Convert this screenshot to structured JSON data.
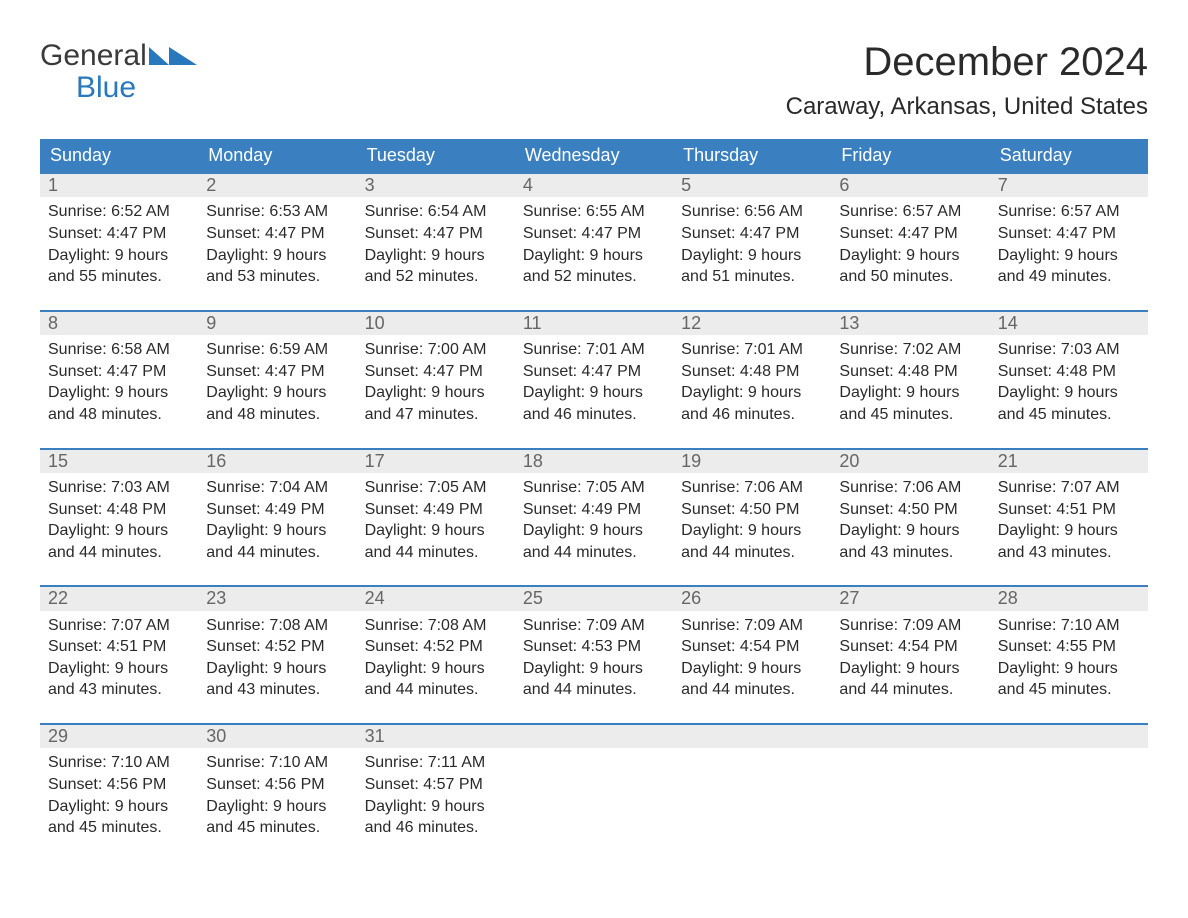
{
  "logo": {
    "line1": "General",
    "line2": "Blue"
  },
  "title": "December 2024",
  "location": "Caraway, Arkansas, United States",
  "colors": {
    "header_bg": "#3a80c0",
    "header_text": "#ffffff",
    "daynum_bg": "#ececec",
    "daynum_text": "#666666",
    "body_text": "#2a2a2a",
    "rule": "#3a80c0",
    "logo_blue": "#2778bd",
    "logo_gray": "#3a3a3a"
  },
  "layout": {
    "type": "calendar-table",
    "columns": 7,
    "rows": 5,
    "cell_font_size": 16,
    "header_font_size": 18,
    "title_font_size": 40,
    "location_font_size": 24
  },
  "day_headers": [
    "Sunday",
    "Monday",
    "Tuesday",
    "Wednesday",
    "Thursday",
    "Friday",
    "Saturday"
  ],
  "weeks": [
    [
      {
        "n": "1",
        "sr": "Sunrise: 6:52 AM",
        "ss": "Sunset: 4:47 PM",
        "d1": "Daylight: 9 hours",
        "d2": "and 55 minutes."
      },
      {
        "n": "2",
        "sr": "Sunrise: 6:53 AM",
        "ss": "Sunset: 4:47 PM",
        "d1": "Daylight: 9 hours",
        "d2": "and 53 minutes."
      },
      {
        "n": "3",
        "sr": "Sunrise: 6:54 AM",
        "ss": "Sunset: 4:47 PM",
        "d1": "Daylight: 9 hours",
        "d2": "and 52 minutes."
      },
      {
        "n": "4",
        "sr": "Sunrise: 6:55 AM",
        "ss": "Sunset: 4:47 PM",
        "d1": "Daylight: 9 hours",
        "d2": "and 52 minutes."
      },
      {
        "n": "5",
        "sr": "Sunrise: 6:56 AM",
        "ss": "Sunset: 4:47 PM",
        "d1": "Daylight: 9 hours",
        "d2": "and 51 minutes."
      },
      {
        "n": "6",
        "sr": "Sunrise: 6:57 AM",
        "ss": "Sunset: 4:47 PM",
        "d1": "Daylight: 9 hours",
        "d2": "and 50 minutes."
      },
      {
        "n": "7",
        "sr": "Sunrise: 6:57 AM",
        "ss": "Sunset: 4:47 PM",
        "d1": "Daylight: 9 hours",
        "d2": "and 49 minutes."
      }
    ],
    [
      {
        "n": "8",
        "sr": "Sunrise: 6:58 AM",
        "ss": "Sunset: 4:47 PM",
        "d1": "Daylight: 9 hours",
        "d2": "and 48 minutes."
      },
      {
        "n": "9",
        "sr": "Sunrise: 6:59 AM",
        "ss": "Sunset: 4:47 PM",
        "d1": "Daylight: 9 hours",
        "d2": "and 48 minutes."
      },
      {
        "n": "10",
        "sr": "Sunrise: 7:00 AM",
        "ss": "Sunset: 4:47 PM",
        "d1": "Daylight: 9 hours",
        "d2": "and 47 minutes."
      },
      {
        "n": "11",
        "sr": "Sunrise: 7:01 AM",
        "ss": "Sunset: 4:47 PM",
        "d1": "Daylight: 9 hours",
        "d2": "and 46 minutes."
      },
      {
        "n": "12",
        "sr": "Sunrise: 7:01 AM",
        "ss": "Sunset: 4:48 PM",
        "d1": "Daylight: 9 hours",
        "d2": "and 46 minutes."
      },
      {
        "n": "13",
        "sr": "Sunrise: 7:02 AM",
        "ss": "Sunset: 4:48 PM",
        "d1": "Daylight: 9 hours",
        "d2": "and 45 minutes."
      },
      {
        "n": "14",
        "sr": "Sunrise: 7:03 AM",
        "ss": "Sunset: 4:48 PM",
        "d1": "Daylight: 9 hours",
        "d2": "and 45 minutes."
      }
    ],
    [
      {
        "n": "15",
        "sr": "Sunrise: 7:03 AM",
        "ss": "Sunset: 4:48 PM",
        "d1": "Daylight: 9 hours",
        "d2": "and 44 minutes."
      },
      {
        "n": "16",
        "sr": "Sunrise: 7:04 AM",
        "ss": "Sunset: 4:49 PM",
        "d1": "Daylight: 9 hours",
        "d2": "and 44 minutes."
      },
      {
        "n": "17",
        "sr": "Sunrise: 7:05 AM",
        "ss": "Sunset: 4:49 PM",
        "d1": "Daylight: 9 hours",
        "d2": "and 44 minutes."
      },
      {
        "n": "18",
        "sr": "Sunrise: 7:05 AM",
        "ss": "Sunset: 4:49 PM",
        "d1": "Daylight: 9 hours",
        "d2": "and 44 minutes."
      },
      {
        "n": "19",
        "sr": "Sunrise: 7:06 AM",
        "ss": "Sunset: 4:50 PM",
        "d1": "Daylight: 9 hours",
        "d2": "and 44 minutes."
      },
      {
        "n": "20",
        "sr": "Sunrise: 7:06 AM",
        "ss": "Sunset: 4:50 PM",
        "d1": "Daylight: 9 hours",
        "d2": "and 43 minutes."
      },
      {
        "n": "21",
        "sr": "Sunrise: 7:07 AM",
        "ss": "Sunset: 4:51 PM",
        "d1": "Daylight: 9 hours",
        "d2": "and 43 minutes."
      }
    ],
    [
      {
        "n": "22",
        "sr": "Sunrise: 7:07 AM",
        "ss": "Sunset: 4:51 PM",
        "d1": "Daylight: 9 hours",
        "d2": "and 43 minutes."
      },
      {
        "n": "23",
        "sr": "Sunrise: 7:08 AM",
        "ss": "Sunset: 4:52 PM",
        "d1": "Daylight: 9 hours",
        "d2": "and 43 minutes."
      },
      {
        "n": "24",
        "sr": "Sunrise: 7:08 AM",
        "ss": "Sunset: 4:52 PM",
        "d1": "Daylight: 9 hours",
        "d2": "and 44 minutes."
      },
      {
        "n": "25",
        "sr": "Sunrise: 7:09 AM",
        "ss": "Sunset: 4:53 PM",
        "d1": "Daylight: 9 hours",
        "d2": "and 44 minutes."
      },
      {
        "n": "26",
        "sr": "Sunrise: 7:09 AM",
        "ss": "Sunset: 4:54 PM",
        "d1": "Daylight: 9 hours",
        "d2": "and 44 minutes."
      },
      {
        "n": "27",
        "sr": "Sunrise: 7:09 AM",
        "ss": "Sunset: 4:54 PM",
        "d1": "Daylight: 9 hours",
        "d2": "and 44 minutes."
      },
      {
        "n": "28",
        "sr": "Sunrise: 7:10 AM",
        "ss": "Sunset: 4:55 PM",
        "d1": "Daylight: 9 hours",
        "d2": "and 45 minutes."
      }
    ],
    [
      {
        "n": "29",
        "sr": "Sunrise: 7:10 AM",
        "ss": "Sunset: 4:56 PM",
        "d1": "Daylight: 9 hours",
        "d2": "and 45 minutes."
      },
      {
        "n": "30",
        "sr": "Sunrise: 7:10 AM",
        "ss": "Sunset: 4:56 PM",
        "d1": "Daylight: 9 hours",
        "d2": "and 45 minutes."
      },
      {
        "n": "31",
        "sr": "Sunrise: 7:11 AM",
        "ss": "Sunset: 4:57 PM",
        "d1": "Daylight: 9 hours",
        "d2": "and 46 minutes."
      },
      null,
      null,
      null,
      null
    ]
  ]
}
